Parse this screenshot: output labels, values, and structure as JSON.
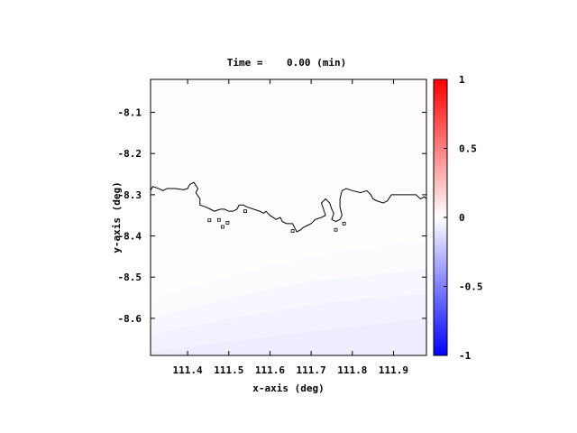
{
  "chart_data": {
    "type": "heatmap",
    "title": "Time =    0.00 (min)",
    "xlabel": "x-axis (deg)",
    "ylabel": "y-axis (deg)",
    "xlim": [
      111.31,
      111.98
    ],
    "ylim": [
      -8.69,
      -8.02
    ],
    "xticks": [
      111.4,
      111.5,
      111.6,
      111.7,
      111.8,
      111.9
    ],
    "xtick_labels": [
      "111.4",
      "111.5",
      "111.6",
      "111.7",
      "111.8",
      "111.9"
    ],
    "yticks": [
      -8.1,
      -8.2,
      -8.3,
      -8.4,
      -8.5,
      -8.6
    ],
    "ytick_labels": [
      "-8.1",
      "-8.2",
      "-8.3",
      "-8.4",
      "-8.5",
      "-8.6"
    ],
    "colorbar": {
      "range": [
        -1,
        1
      ],
      "ticks": [
        1,
        0.5,
        0,
        -0.5,
        -1
      ],
      "tick_labels": [
        "1",
        "0.5",
        "0",
        "-0.5",
        "-1"
      ],
      "colors": {
        "low": "#0000ff",
        "mid": "#ffffff",
        "high": "#ff0000"
      }
    },
    "field": {
      "background_value": 0.01,
      "bands": [
        {
          "value": -0.01,
          "boundary": [
            [
              111.31,
              -8.55
            ],
            [
              111.45,
              -8.51
            ],
            [
              111.6,
              -8.47
            ],
            [
              111.75,
              -8.44
            ],
            [
              111.9,
              -8.42
            ],
            [
              111.98,
              -8.41
            ]
          ]
        },
        {
          "value": -0.03,
          "boundary": [
            [
              111.31,
              -8.6
            ],
            [
              111.5,
              -8.55
            ],
            [
              111.7,
              -8.51
            ],
            [
              111.98,
              -8.48
            ]
          ]
        },
        {
          "value": -0.05,
          "boundary": [
            [
              111.31,
              -8.64
            ],
            [
              111.5,
              -8.6
            ],
            [
              111.75,
              -8.56
            ],
            [
              111.98,
              -8.54
            ]
          ]
        },
        {
          "value": -0.07,
          "boundary": [
            [
              111.31,
              -8.68
            ],
            [
              111.55,
              -8.65
            ],
            [
              111.8,
              -8.62
            ],
            [
              111.98,
              -8.6
            ]
          ]
        }
      ]
    },
    "coastline": [
      [
        111.31,
        -8.29
      ],
      [
        111.315,
        -8.28
      ],
      [
        111.33,
        -8.285
      ],
      [
        111.34,
        -8.29
      ],
      [
        111.35,
        -8.285
      ],
      [
        111.37,
        -8.285
      ],
      [
        111.39,
        -8.288
      ],
      [
        111.4,
        -8.285
      ],
      [
        111.405,
        -8.275
      ],
      [
        111.415,
        -8.27
      ],
      [
        111.425,
        -8.285
      ],
      [
        111.42,
        -8.295
      ],
      [
        111.43,
        -8.31
      ],
      [
        111.43,
        -8.325
      ],
      [
        111.445,
        -8.33
      ],
      [
        111.455,
        -8.335
      ],
      [
        111.465,
        -8.34
      ],
      [
        111.48,
        -8.335
      ],
      [
        111.49,
        -8.335
      ],
      [
        111.5,
        -8.34
      ],
      [
        111.51,
        -8.34
      ],
      [
        111.52,
        -8.335
      ],
      [
        111.525,
        -8.325
      ],
      [
        111.535,
        -8.325
      ],
      [
        111.545,
        -8.33
      ],
      [
        111.56,
        -8.335
      ],
      [
        111.575,
        -8.34
      ],
      [
        111.585,
        -8.345
      ],
      [
        111.59,
        -8.34
      ],
      [
        111.6,
        -8.35
      ],
      [
        111.615,
        -8.36
      ],
      [
        111.625,
        -8.355
      ],
      [
        111.63,
        -8.365
      ],
      [
        111.64,
        -8.37
      ],
      [
        111.655,
        -8.37
      ],
      [
        111.66,
        -8.38
      ],
      [
        111.665,
        -8.39
      ],
      [
        111.675,
        -8.385
      ],
      [
        111.68,
        -8.38
      ],
      [
        111.69,
        -8.375
      ],
      [
        111.7,
        -8.37
      ],
      [
        111.71,
        -8.36
      ],
      [
        111.725,
        -8.355
      ],
      [
        111.735,
        -8.35
      ],
      [
        111.73,
        -8.335
      ],
      [
        111.725,
        -8.32
      ],
      [
        111.735,
        -8.31
      ],
      [
        111.745,
        -8.32
      ],
      [
        111.75,
        -8.335
      ],
      [
        111.755,
        -8.345
      ],
      [
        111.75,
        -8.36
      ],
      [
        111.76,
        -8.365
      ],
      [
        111.77,
        -8.36
      ],
      [
        111.775,
        -8.35
      ],
      [
        111.77,
        -8.33
      ],
      [
        111.77,
        -8.31
      ],
      [
        111.775,
        -8.29
      ],
      [
        111.785,
        -8.285
      ],
      [
        111.8,
        -8.29
      ],
      [
        111.82,
        -8.295
      ],
      [
        111.835,
        -8.29
      ],
      [
        111.845,
        -8.3
      ],
      [
        111.85,
        -8.31
      ],
      [
        111.86,
        -8.315
      ],
      [
        111.875,
        -8.32
      ],
      [
        111.885,
        -8.315
      ],
      [
        111.895,
        -8.3
      ],
      [
        111.91,
        -8.3
      ],
      [
        111.93,
        -8.3
      ],
      [
        111.955,
        -8.3
      ],
      [
        111.965,
        -8.31
      ],
      [
        111.975,
        -8.305
      ],
      [
        111.98,
        -8.31
      ]
    ],
    "islands": [
      [
        111.453,
        -8.362
      ],
      [
        111.476,
        -8.361
      ],
      [
        111.497,
        -8.368
      ],
      [
        111.485,
        -8.378
      ],
      [
        111.54,
        -8.34
      ],
      [
        111.78,
        -8.37
      ],
      [
        111.76,
        -8.385
      ],
      [
        111.655,
        -8.388
      ]
    ]
  }
}
